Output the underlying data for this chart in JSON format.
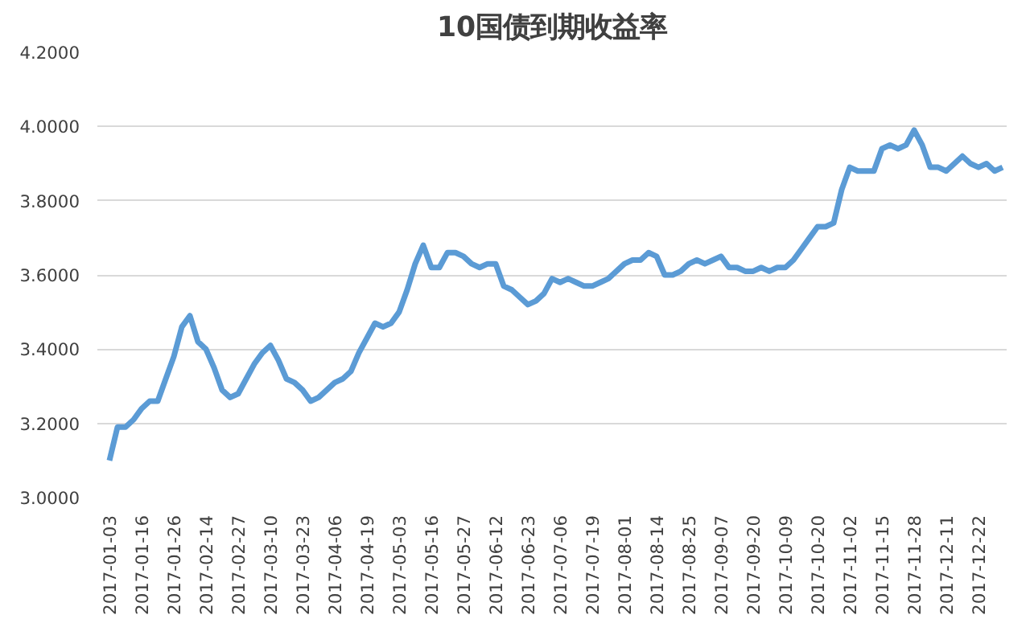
{
  "chart_data": {
    "type": "line",
    "title": "10国债到期收益率",
    "categories": [
      "2017-01-03",
      null,
      null,
      null,
      "2017-01-16",
      null,
      null,
      null,
      "2017-01-26",
      null,
      null,
      null,
      "2017-02-14",
      null,
      null,
      null,
      "2017-02-27",
      null,
      null,
      null,
      "2017-03-10",
      null,
      null,
      null,
      "2017-03-23",
      null,
      null,
      null,
      "2017-04-06",
      null,
      null,
      null,
      "2017-04-19",
      null,
      null,
      null,
      "2017-05-03",
      null,
      null,
      null,
      "2017-05-16",
      null,
      null,
      null,
      "2017-05-27",
      null,
      null,
      null,
      "2017-06-12",
      null,
      null,
      null,
      "2017-06-23",
      null,
      null,
      null,
      "2017-07-06",
      null,
      null,
      null,
      "2017-07-19",
      null,
      null,
      null,
      "2017-08-01",
      null,
      null,
      null,
      "2017-08-14",
      null,
      null,
      null,
      "2017-08-25",
      null,
      null,
      null,
      "2017-09-07",
      null,
      null,
      null,
      "2017-09-20",
      null,
      null,
      null,
      "2017-10-09",
      null,
      null,
      null,
      "2017-10-20",
      null,
      null,
      null,
      "2017-11-02",
      null,
      null,
      null,
      "2017-11-15",
      null,
      null,
      null,
      "2017-11-28",
      null,
      null,
      null,
      "2017-12-11",
      null,
      null,
      null,
      "2017-12-22",
      null,
      null,
      null
    ],
    "series": [
      {
        "color": "#5b9bd5",
        "values": [
          3.1,
          3.19,
          3.19,
          3.21,
          3.24,
          3.26,
          3.26,
          3.32,
          3.38,
          3.46,
          3.49,
          3.42,
          3.4,
          3.35,
          3.29,
          3.27,
          3.28,
          3.32,
          3.36,
          3.39,
          3.41,
          3.37,
          3.32,
          3.31,
          3.29,
          3.26,
          3.27,
          3.29,
          3.31,
          3.32,
          3.34,
          3.39,
          3.43,
          3.47,
          3.46,
          3.47,
          3.5,
          3.56,
          3.63,
          3.68,
          3.62,
          3.62,
          3.66,
          3.66,
          3.65,
          3.63,
          3.62,
          3.63,
          3.63,
          3.57,
          3.56,
          3.54,
          3.52,
          3.53,
          3.55,
          3.59,
          3.58,
          3.59,
          3.58,
          3.57,
          3.57,
          3.58,
          3.59,
          3.61,
          3.63,
          3.64,
          3.64,
          3.66,
          3.65,
          3.6,
          3.6,
          3.61,
          3.63,
          3.64,
          3.63,
          3.64,
          3.65,
          3.62,
          3.62,
          3.61,
          3.61,
          3.62,
          3.61,
          3.62,
          3.62,
          3.64,
          3.67,
          3.7,
          3.73,
          3.73,
          3.74,
          3.83,
          3.89,
          3.88,
          3.88,
          3.88,
          3.94,
          3.95,
          3.94,
          3.95,
          3.99,
          3.95,
          3.89,
          3.89,
          3.88,
          3.9,
          3.92,
          3.9,
          3.89,
          3.9,
          3.88,
          3.89
        ]
      }
    ],
    "ylim": [
      3.0,
      4.2
    ],
    "yticks": [
      {
        "value": 3.0,
        "label": "3.0000"
      },
      {
        "value": 3.2,
        "label": "3.2000"
      },
      {
        "value": 3.4,
        "label": "3.4000"
      },
      {
        "value": 3.6,
        "label": "3.6000"
      },
      {
        "value": 3.8,
        "label": "3.8000"
      },
      {
        "value": 4.0,
        "label": "4.0000"
      },
      {
        "value": 4.2,
        "label": "4.2000"
      }
    ],
    "grid": "y",
    "marker": "none",
    "line_style": "solid"
  }
}
